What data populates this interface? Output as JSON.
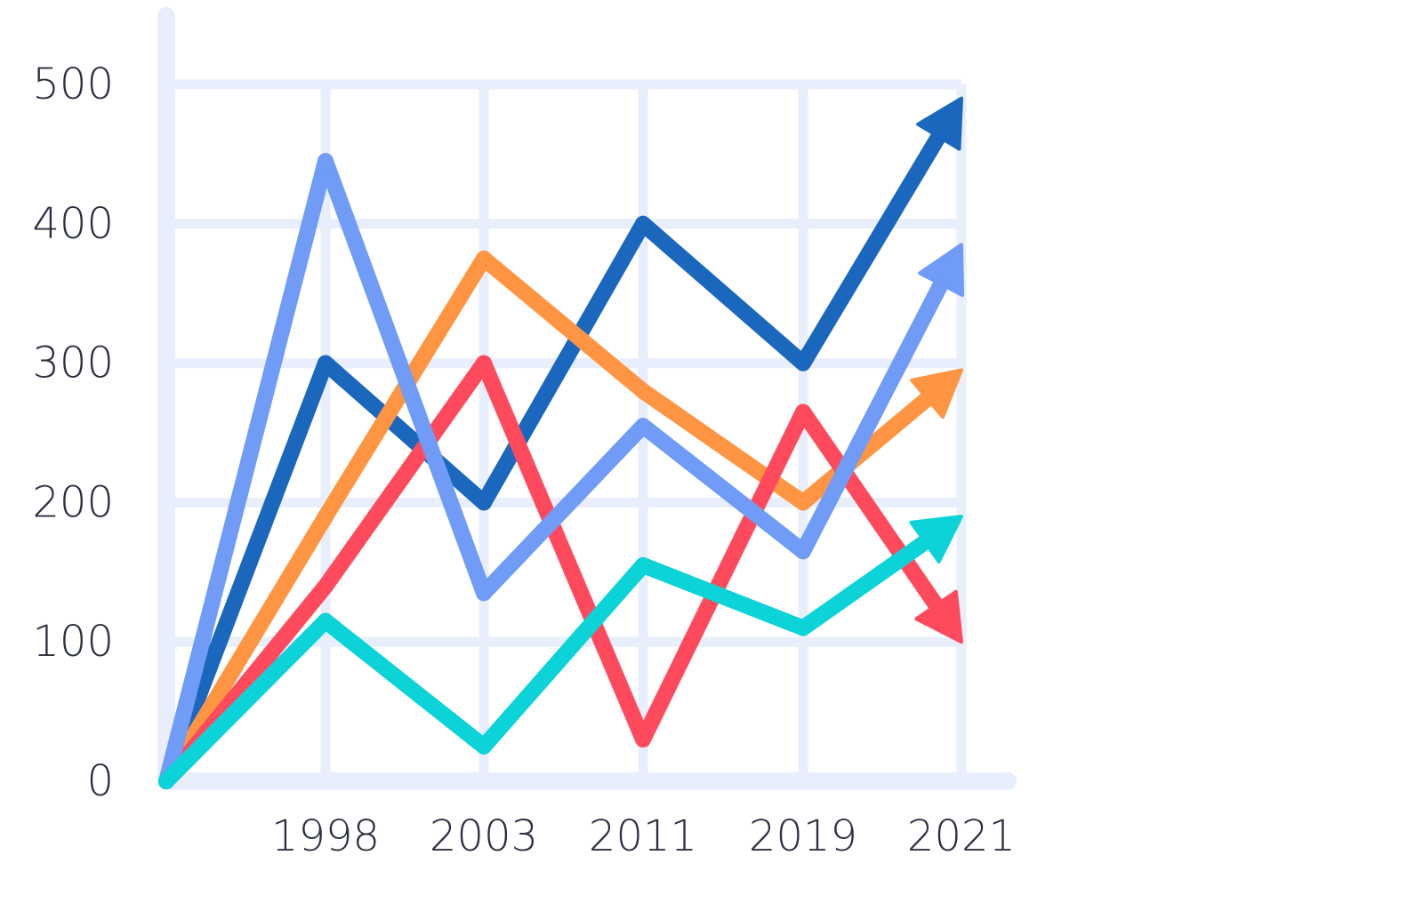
{
  "chart_data": {
    "type": "line",
    "title": "",
    "xlabel": "",
    "ylabel": "",
    "categories": [
      "",
      "1998",
      "2003",
      "2011",
      "2019",
      "2021"
    ],
    "x_tick_labels": [
      "1998",
      "2003",
      "2011",
      "2019",
      "2021"
    ],
    "y_tick_labels": [
      "0",
      "100",
      "200",
      "300",
      "400",
      "500"
    ],
    "ylim": [
      0,
      500
    ],
    "grid": true,
    "legend": "none",
    "arrowheads_on_series_ends": true,
    "series": [
      {
        "color": "#1a67bd",
        "values": [
          0,
          300,
          200,
          400,
          300,
          490
        ]
      },
      {
        "color": "#ff9542",
        "values": [
          0,
          190,
          375,
          280,
          200,
          295
        ]
      },
      {
        "color": "#ff4a5d",
        "values": [
          0,
          140,
          300,
          30,
          265,
          100
        ]
      },
      {
        "color": "#709bf7",
        "values": [
          0,
          445,
          135,
          255,
          165,
          385
        ]
      },
      {
        "color": "#0bd3d8",
        "values": [
          0,
          115,
          25,
          155,
          110,
          190
        ]
      }
    ],
    "colors": {
      "grid": "#e8eefb",
      "axis": "#e8eefb",
      "tick_text": "#2b3040"
    }
  }
}
